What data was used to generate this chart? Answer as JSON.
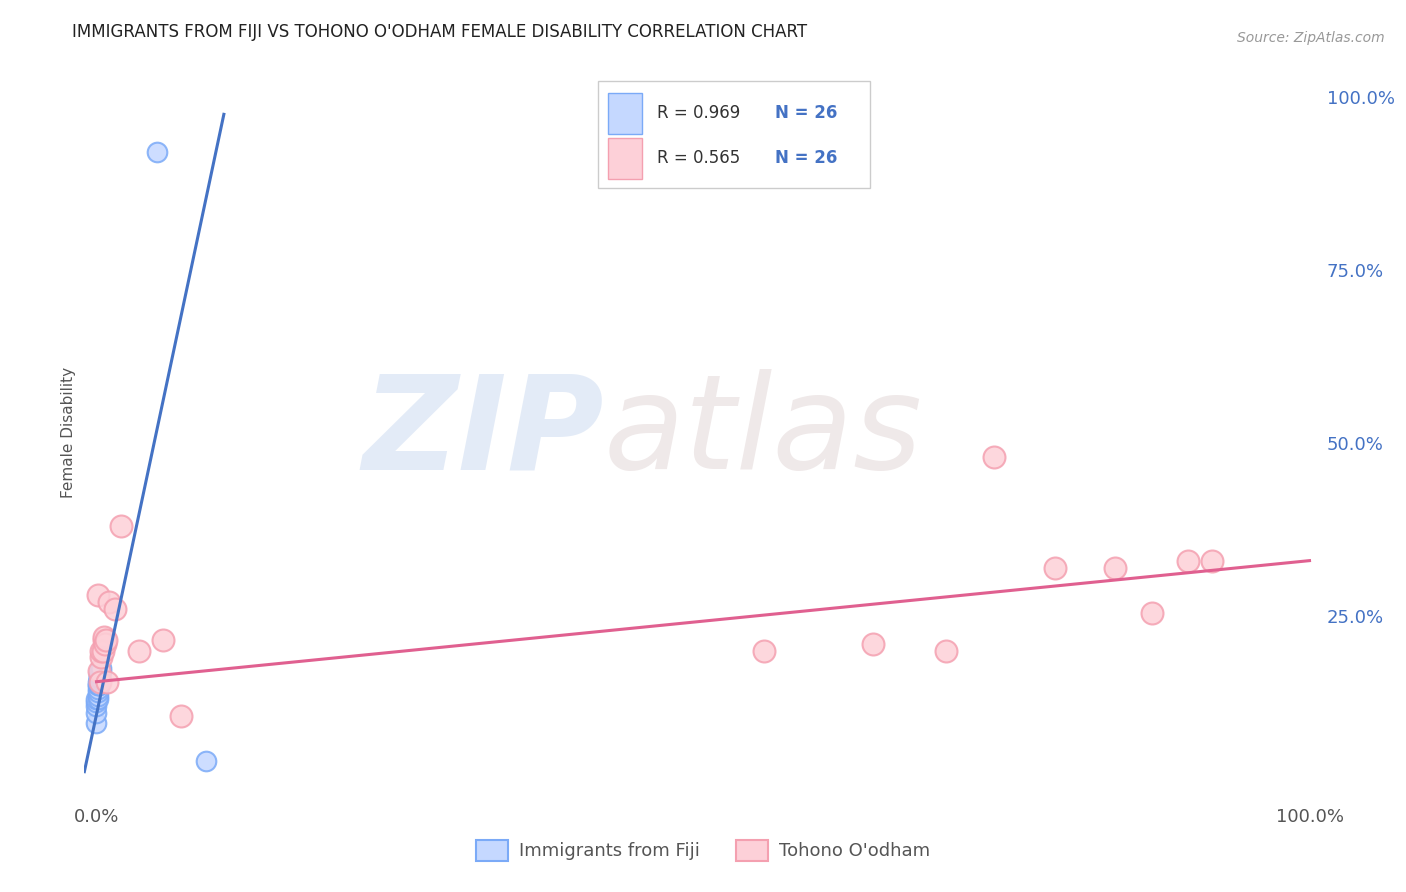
{
  "title": "IMMIGRANTS FROM FIJI VS TOHONO O'ODHAM FEMALE DISABILITY CORRELATION CHART",
  "source": "Source: ZipAtlas.com",
  "ylabel": "Female Disability",
  "right_yticks": [
    "100.0%",
    "75.0%",
    "50.0%",
    "25.0%"
  ],
  "right_ytick_vals": [
    1.0,
    0.75,
    0.5,
    0.25
  ],
  "fiji_color": "#7baaf7",
  "fiji_color_light": "#c5d8ff",
  "tohono_color": "#f4a0b0",
  "tohono_color_light": "#fdd0d8",
  "trend_fiji_color": "#4472c4",
  "trend_tohono_color": "#e06090",
  "legend_r_fiji": "R = 0.969",
  "legend_n_fiji": "N = 26",
  "legend_r_tohono": "R = 0.565",
  "legend_n_tohono": "N = 26",
  "legend_label_fiji": "Immigrants from Fiji",
  "legend_label_tohono": "Tohono O'odham",
  "watermark_zip": "ZIP",
  "watermark_atlas": "atlas",
  "fiji_x": [
    0.0,
    0.0,
    0.0,
    0.0,
    0.0,
    0.001,
    0.001,
    0.001,
    0.001,
    0.001,
    0.001,
    0.001,
    0.002,
    0.002,
    0.002,
    0.002,
    0.002,
    0.002,
    0.002,
    0.003,
    0.003,
    0.003,
    0.004,
    0.004,
    0.05,
    0.09
  ],
  "fiji_y": [
    0.095,
    0.11,
    0.12,
    0.125,
    0.13,
    0.13,
    0.135,
    0.14,
    0.145,
    0.15,
    0.15,
    0.155,
    0.15,
    0.155,
    0.158,
    0.16,
    0.162,
    0.165,
    0.168,
    0.16,
    0.165,
    0.17,
    0.17,
    0.175,
    0.92,
    0.04
  ],
  "tohono_x": [
    0.001,
    0.002,
    0.003,
    0.004,
    0.004,
    0.005,
    0.006,
    0.006,
    0.007,
    0.008,
    0.009,
    0.01,
    0.015,
    0.02,
    0.035,
    0.055,
    0.07,
    0.55,
    0.64,
    0.7,
    0.74,
    0.79,
    0.84,
    0.87,
    0.9,
    0.92
  ],
  "tohono_y": [
    0.28,
    0.17,
    0.155,
    0.19,
    0.2,
    0.2,
    0.215,
    0.22,
    0.21,
    0.215,
    0.155,
    0.27,
    0.26,
    0.38,
    0.2,
    0.215,
    0.105,
    0.2,
    0.21,
    0.2,
    0.48,
    0.32,
    0.32,
    0.255,
    0.33,
    0.33
  ],
  "fiji_trend_x": [
    -0.01,
    0.105
  ],
  "fiji_trend_y": [
    0.025,
    0.975
  ],
  "tohono_trend_x": [
    0.0,
    1.0
  ],
  "tohono_trend_y": [
    0.155,
    0.33
  ],
  "xlim": [
    -0.01,
    1.01
  ],
  "ylim": [
    -0.02,
    1.05
  ],
  "background_color": "#ffffff",
  "grid_color": "#d0d0d0",
  "text_color_dark": "#333333",
  "text_color_blue": "#4472c4",
  "title_color": "#222222",
  "source_color": "#999999"
}
